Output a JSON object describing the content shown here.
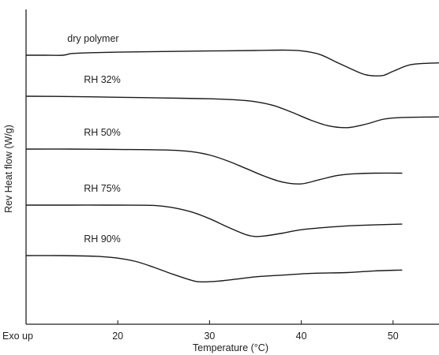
{
  "chart_data": {
    "type": "line",
    "xlabel": "Temperature (°C)",
    "ylabel": "Rev Heat flow (W/g)",
    "corner_label": "Exo up",
    "xlim": [
      10,
      55
    ],
    "xticks": [
      20,
      30,
      40,
      50
    ],
    "grid": false,
    "legend": "none (curves labeled directly above each trace)",
    "line_color": "#1a1a1a",
    "series": [
      {
        "name": "dry polymer",
        "points": [
          [
            10,
            0.0
          ],
          [
            12,
            0.0
          ],
          [
            14,
            0.0
          ],
          [
            15,
            0.1
          ],
          [
            17,
            0.15
          ],
          [
            20,
            0.18
          ],
          [
            25,
            0.22
          ],
          [
            30,
            0.25
          ],
          [
            35,
            0.28
          ],
          [
            38,
            0.3
          ],
          [
            40,
            0.26
          ],
          [
            42,
            0.05
          ],
          [
            44,
            -0.45
          ],
          [
            46,
            -0.95
          ],
          [
            47,
            -1.15
          ],
          [
            48,
            -1.22
          ],
          [
            49,
            -1.18
          ],
          [
            50,
            -0.95
          ],
          [
            52,
            -0.55
          ],
          [
            55,
            -0.45
          ]
        ]
      },
      {
        "name": "RH 32%",
        "points": [
          [
            10,
            0.0
          ],
          [
            15,
            -0.02
          ],
          [
            20,
            -0.06
          ],
          [
            25,
            -0.1
          ],
          [
            30,
            -0.15
          ],
          [
            33,
            -0.22
          ],
          [
            35,
            -0.32
          ],
          [
            37,
            -0.55
          ],
          [
            39,
            -0.95
          ],
          [
            41,
            -1.4
          ],
          [
            43,
            -1.75
          ],
          [
            45,
            -1.85
          ],
          [
            47,
            -1.65
          ],
          [
            49,
            -1.35
          ],
          [
            51,
            -1.25
          ],
          [
            55,
            -1.22
          ]
        ]
      },
      {
        "name": "RH 50%",
        "points": [
          [
            10,
            0.0
          ],
          [
            15,
            0.0
          ],
          [
            20,
            -0.02
          ],
          [
            25,
            -0.05
          ],
          [
            28,
            -0.15
          ],
          [
            30,
            -0.35
          ],
          [
            32,
            -0.7
          ],
          [
            34,
            -1.15
          ],
          [
            36,
            -1.6
          ],
          [
            38,
            -1.95
          ],
          [
            40,
            -2.05
          ],
          [
            42,
            -1.8
          ],
          [
            44,
            -1.55
          ],
          [
            46,
            -1.45
          ],
          [
            48,
            -1.42
          ],
          [
            51,
            -1.42
          ]
        ]
      },
      {
        "name": "RH 75%",
        "points": [
          [
            10,
            0.0
          ],
          [
            15,
            0.0
          ],
          [
            20,
            0.0
          ],
          [
            24,
            -0.02
          ],
          [
            26,
            -0.15
          ],
          [
            28,
            -0.4
          ],
          [
            30,
            -0.8
          ],
          [
            32,
            -1.3
          ],
          [
            34,
            -1.75
          ],
          [
            35,
            -1.85
          ],
          [
            36,
            -1.82
          ],
          [
            38,
            -1.65
          ],
          [
            40,
            -1.45
          ],
          [
            43,
            -1.3
          ],
          [
            46,
            -1.2
          ],
          [
            51,
            -1.12
          ]
        ]
      },
      {
        "name": "RH 90%",
        "points": [
          [
            10,
            0.0
          ],
          [
            14,
            0.0
          ],
          [
            18,
            -0.05
          ],
          [
            20,
            -0.15
          ],
          [
            22,
            -0.35
          ],
          [
            24,
            -0.7
          ],
          [
            26,
            -1.1
          ],
          [
            28,
            -1.45
          ],
          [
            29,
            -1.55
          ],
          [
            31,
            -1.5
          ],
          [
            33,
            -1.38
          ],
          [
            35,
            -1.25
          ],
          [
            38,
            -1.15
          ],
          [
            41,
            -1.05
          ],
          [
            45,
            -1.0
          ],
          [
            48,
            -0.9
          ],
          [
            51,
            -0.85
          ]
        ]
      }
    ]
  }
}
